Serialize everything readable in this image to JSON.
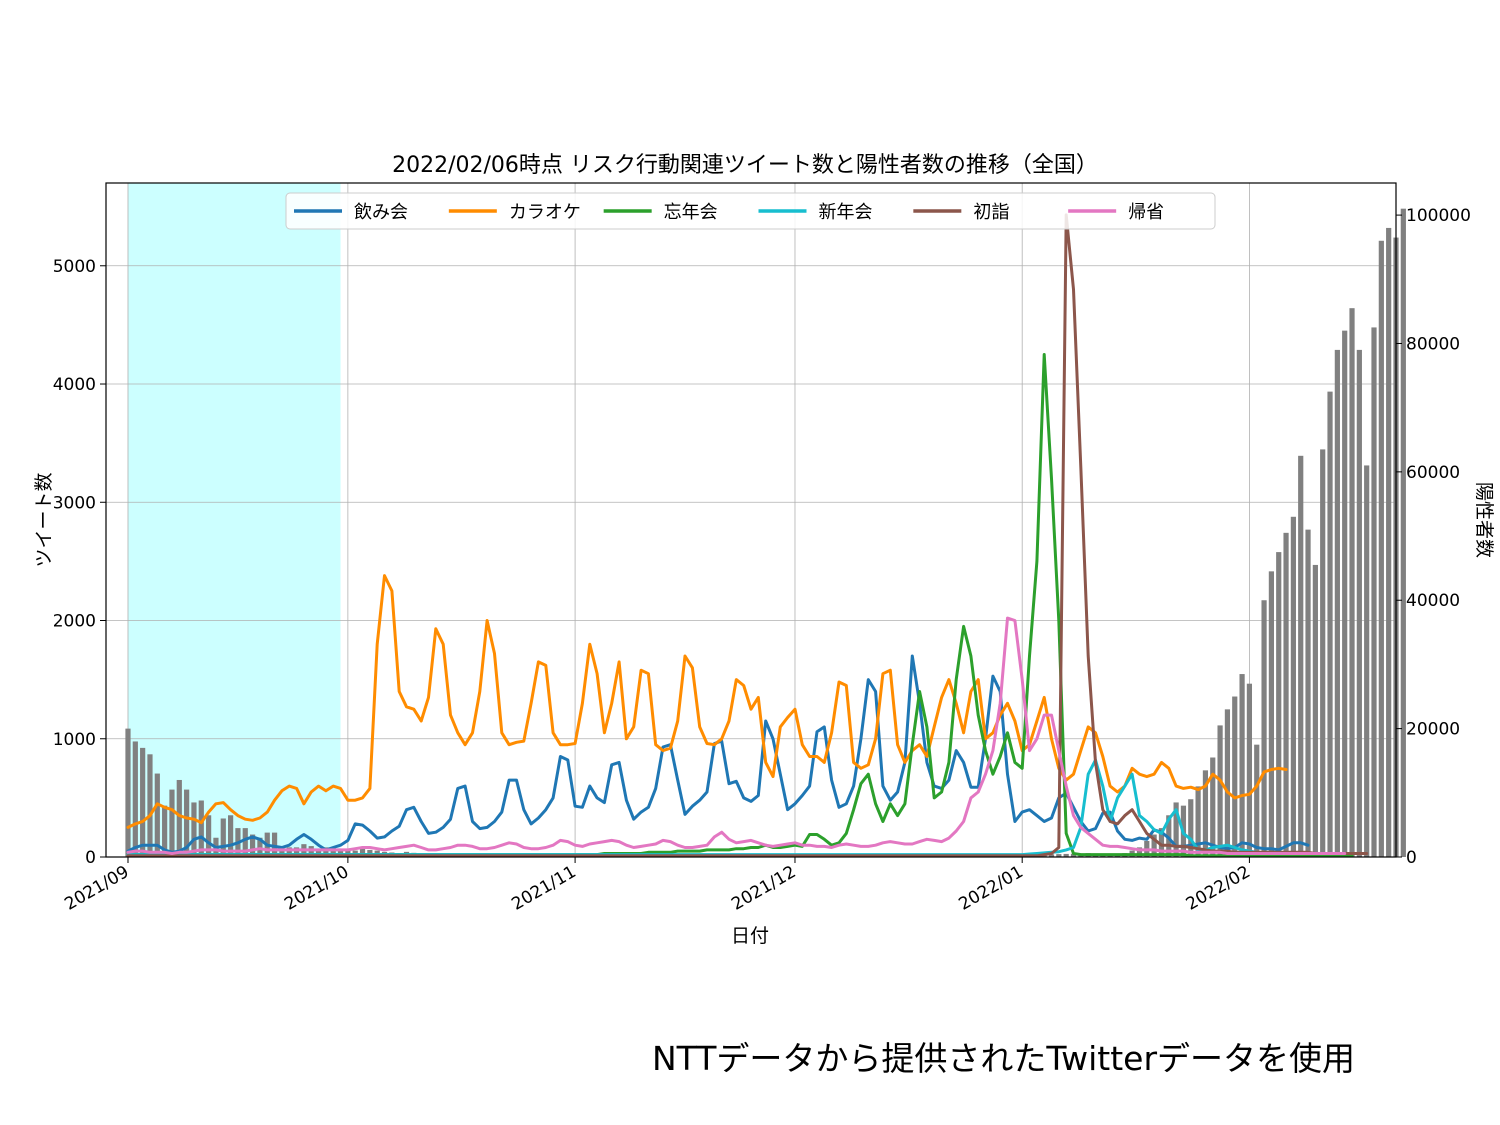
{
  "footer": {
    "credit": "NTTデータから提供されたTwitterデータを使用"
  },
  "chart_data": {
    "type": "line",
    "title": "2022/02/06時点 リスク行動関連ツイート数と陽性者数の推移（全国）",
    "xlabel": "日付",
    "ylabel": "ツイート数",
    "y2label": "陽性者数",
    "x_start": "2021-09-01",
    "x_end": "2022-02-06",
    "xlim": [
      "2021-08-29",
      "2022-02-21"
    ],
    "ylim": [
      0,
      5700
    ],
    "y2lim": [
      0,
      105000
    ],
    "x_ticks": [
      "2021/09",
      "2021/10",
      "2021/11",
      "2021/12",
      "2022/01",
      "2022/02"
    ],
    "x_tick_dates": [
      "2021-09-01",
      "2021-10-01",
      "2021-11-01",
      "2021-12-01",
      "2022-01-01",
      "2022-02-01"
    ],
    "y_ticks": [
      "0",
      "1000",
      "2000",
      "3000",
      "4000",
      "5000"
    ],
    "y2_ticks": [
      "0",
      "20000",
      "40000",
      "60000",
      "80000",
      "100000"
    ],
    "grid": true,
    "legend_position": "top-center",
    "shaded_period": {
      "from": "2021-09-01",
      "to": "2021-09-30",
      "color": "#ccffff"
    },
    "bars": {
      "name": "陽性者数",
      "color": "#808080",
      "axis": "right",
      "values": [
        20000,
        18000,
        17000,
        16000,
        13000,
        8000,
        10500,
        12000,
        10500,
        8500,
        8800,
        6500,
        3000,
        6000,
        6500,
        4500,
        4500,
        3500,
        3000,
        3800,
        3800,
        1500,
        1500,
        1500,
        2000,
        1700,
        1200,
        1500,
        1500,
        1300,
        1200,
        1000,
        1300,
        1100,
        1000,
        800,
        700,
        600,
        800,
        650,
        500,
        550,
        500,
        400,
        400,
        350,
        300,
        250,
        250,
        230,
        200,
        190,
        180,
        170,
        150,
        150,
        140,
        130,
        120,
        110,
        100,
        95,
        90,
        90,
        85,
        80,
        80,
        75,
        70,
        70,
        70,
        65,
        60,
        60,
        60,
        55,
        55,
        50,
        50,
        50,
        50,
        50,
        50,
        60,
        60,
        60,
        60,
        70,
        70,
        80,
        80,
        80,
        90,
        100,
        100,
        110,
        120,
        120,
        130,
        130,
        150,
        150,
        160,
        170,
        170,
        180,
        190,
        200,
        200,
        220,
        230,
        240,
        250,
        260,
        270,
        280,
        290,
        300,
        310,
        320,
        330,
        340,
        360,
        370,
        380,
        400,
        420,
        450,
        480,
        500,
        540,
        600,
        550,
        500,
        450,
        400,
        600,
        1000,
        1500,
        2500,
        3500,
        4500,
        6500,
        8500,
        8000,
        9000,
        11000,
        13500,
        15500,
        20500,
        23000,
        25000,
        28500,
        27000,
        17500,
        40000,
        44500,
        47500,
        50500,
        53000,
        62500,
        51000,
        45500,
        63500,
        72500,
        79000,
        82000,
        85500,
        79000,
        61000,
        82500,
        96000,
        98000,
        96500,
        101000
      ]
    },
    "series": [
      {
        "name": "飲み会",
        "color": "#1f77b4",
        "values": [
          50,
          80,
          100,
          100,
          100,
          60,
          40,
          50,
          80,
          150,
          170,
          120,
          80,
          90,
          100,
          120,
          150,
          170,
          150,
          100,
          90,
          80,
          100,
          150,
          190,
          150,
          100,
          60,
          80,
          100,
          140,
          280,
          270,
          220,
          160,
          170,
          220,
          260,
          400,
          420,
          300,
          200,
          210,
          250,
          320,
          580,
          600,
          300,
          240,
          250,
          300,
          380,
          650,
          650,
          400,
          280,
          330,
          400,
          500,
          850,
          820,
          430,
          420,
          600,
          500,
          460,
          780,
          800,
          480,
          320,
          380,
          420,
          580,
          930,
          950,
          650,
          360,
          430,
          480,
          550,
          960,
          980,
          620,
          640,
          500,
          470,
          520,
          1150,
          1000,
          700,
          400,
          450,
          520,
          600,
          1060,
          1100,
          650,
          420,
          450,
          600,
          1000,
          1500,
          1400,
          600,
          480,
          550,
          800,
          1700,
          1300,
          800,
          600,
          580,
          650,
          900,
          800,
          590,
          590,
          1000,
          1530,
          1400,
          700,
          300,
          380,
          400,
          350,
          300,
          330,
          500,
          540,
          420,
          300,
          220,
          240,
          370,
          380,
          220,
          150,
          140,
          160,
          150,
          230,
          210,
          160,
          90,
          90,
          100,
          110,
          120,
          100,
          80,
          70,
          80,
          120,
          110,
          80,
          70,
          70,
          60,
          90,
          120,
          120,
          100
        ]
      },
      {
        "name": "カラオケ",
        "color": "#ff8c00",
        "values": [
          250,
          280,
          300,
          350,
          450,
          420,
          400,
          350,
          330,
          320,
          290,
          380,
          450,
          460,
          400,
          350,
          320,
          310,
          330,
          380,
          480,
          560,
          600,
          580,
          450,
          550,
          600,
          560,
          600,
          580,
          480,
          480,
          500,
          580,
          1800,
          2380,
          2250,
          1400,
          1270,
          1250,
          1150,
          1350,
          1930,
          1800,
          1200,
          1050,
          950,
          1050,
          1400,
          2000,
          1720,
          1050,
          950,
          970,
          980,
          1300,
          1650,
          1620,
          1050,
          950,
          950,
          960,
          1300,
          1800,
          1550,
          1050,
          1300,
          1650,
          1000,
          1100,
          1580,
          1550,
          950,
          900,
          920,
          1150,
          1700,
          1600,
          1100,
          960,
          950,
          1000,
          1150,
          1500,
          1450,
          1250,
          1350,
          800,
          680,
          1100,
          1180,
          1250,
          950,
          850,
          850,
          800,
          1050,
          1480,
          1450,
          800,
          750,
          780,
          1000,
          1550,
          1580,
          950,
          800,
          900,
          950,
          850,
          1100,
          1350,
          1500,
          1300,
          1050,
          1400,
          1500,
          1000,
          1050,
          1200,
          1300,
          1150,
          900,
          950,
          1150,
          1350,
          1000,
          750,
          650,
          700,
          900,
          1100,
          1050,
          850,
          600,
          550,
          600,
          750,
          700,
          680,
          700,
          800,
          750,
          600,
          580,
          590,
          570,
          600,
          700,
          650,
          550,
          500,
          520,
          530,
          600,
          720,
          740,
          750,
          740
        ]
      },
      {
        "name": "忘年会",
        "color": "#2ca02c",
        "values": [
          20,
          20,
          20,
          20,
          20,
          20,
          20,
          20,
          20,
          20,
          20,
          20,
          20,
          20,
          20,
          20,
          20,
          20,
          20,
          20,
          20,
          20,
          20,
          20,
          20,
          20,
          20,
          20,
          20,
          20,
          20,
          20,
          20,
          20,
          20,
          20,
          20,
          20,
          20,
          20,
          20,
          20,
          20,
          20,
          20,
          20,
          20,
          20,
          20,
          20,
          20,
          20,
          20,
          20,
          20,
          20,
          20,
          20,
          20,
          20,
          20,
          20,
          20,
          20,
          20,
          30,
          30,
          30,
          30,
          30,
          30,
          40,
          40,
          40,
          40,
          50,
          50,
          50,
          50,
          60,
          60,
          60,
          60,
          70,
          70,
          80,
          80,
          100,
          80,
          80,
          90,
          100,
          90,
          190,
          190,
          150,
          100,
          120,
          200,
          400,
          620,
          700,
          450,
          300,
          450,
          350,
          450,
          950,
          1400,
          1100,
          500,
          550,
          800,
          1500,
          1950,
          1700,
          1200,
          900,
          700,
          850,
          1050,
          800,
          750,
          1700,
          2500,
          4250,
          3200,
          2000,
          200,
          30,
          20,
          20,
          20,
          20,
          20,
          20,
          20,
          20,
          20,
          20,
          20,
          20,
          20,
          20,
          20,
          10,
          10,
          10,
          10,
          10,
          10,
          10,
          10,
          10,
          10,
          10,
          10,
          10,
          10,
          10,
          10,
          10,
          10,
          10,
          10,
          10,
          10,
          10
        ]
      },
      {
        "name": "新年会",
        "color": "#17becf",
        "values": [
          20,
          20,
          20,
          20,
          20,
          20,
          20,
          20,
          20,
          20,
          20,
          20,
          20,
          20,
          20,
          20,
          20,
          20,
          20,
          20,
          20,
          20,
          20,
          20,
          20,
          20,
          20,
          20,
          20,
          20,
          20,
          20,
          20,
          20,
          20,
          20,
          20,
          20,
          20,
          20,
          20,
          20,
          20,
          20,
          20,
          20,
          20,
          20,
          20,
          20,
          20,
          20,
          20,
          20,
          20,
          20,
          20,
          20,
          20,
          20,
          20,
          20,
          20,
          20,
          20,
          20,
          20,
          20,
          20,
          20,
          20,
          20,
          20,
          20,
          20,
          20,
          20,
          20,
          20,
          20,
          20,
          20,
          20,
          20,
          20,
          20,
          20,
          20,
          20,
          20,
          20,
          20,
          20,
          20,
          20,
          20,
          20,
          20,
          20,
          20,
          20,
          20,
          20,
          20,
          20,
          20,
          20,
          20,
          20,
          20,
          20,
          20,
          20,
          20,
          20,
          20,
          20,
          20,
          20,
          20,
          20,
          20,
          20,
          25,
          30,
          35,
          40,
          45,
          60,
          80,
          250,
          700,
          820,
          600,
          300,
          500,
          600,
          700,
          350,
          300,
          230,
          200,
          320,
          400,
          200,
          150,
          60,
          60,
          80,
          90,
          100,
          80,
          60,
          50,
          40,
          30,
          30,
          30,
          30,
          30,
          30,
          30,
          30,
          30,
          30,
          30,
          30
        ]
      },
      {
        "name": "初詣",
        "color": "#8c564b",
        "values": [
          10,
          10,
          10,
          10,
          10,
          10,
          10,
          10,
          10,
          10,
          10,
          10,
          10,
          10,
          10,
          10,
          10,
          10,
          10,
          10,
          10,
          10,
          10,
          10,
          10,
          10,
          10,
          10,
          10,
          10,
          10,
          10,
          10,
          10,
          10,
          10,
          10,
          10,
          10,
          10,
          10,
          10,
          10,
          10,
          10,
          10,
          10,
          10,
          10,
          10,
          10,
          10,
          10,
          10,
          10,
          10,
          10,
          10,
          10,
          10,
          10,
          10,
          10,
          10,
          10,
          10,
          10,
          10,
          10,
          10,
          10,
          10,
          10,
          10,
          10,
          10,
          10,
          10,
          10,
          10,
          10,
          10,
          10,
          10,
          10,
          10,
          10,
          10,
          10,
          10,
          10,
          10,
          10,
          10,
          10,
          10,
          10,
          10,
          10,
          10,
          10,
          10,
          10,
          10,
          10,
          10,
          10,
          10,
          10,
          10,
          10,
          10,
          10,
          10,
          10,
          10,
          10,
          10,
          10,
          10,
          10,
          10,
          10,
          10,
          10,
          20,
          30,
          80,
          5430,
          4800,
          3300,
          1700,
          800,
          400,
          300,
          280,
          350,
          400,
          300,
          200,
          150,
          100,
          100,
          90,
          90,
          80,
          70,
          60,
          50,
          50,
          50,
          40,
          40,
          40,
          40,
          40,
          40,
          40,
          40,
          40,
          40,
          40,
          30,
          30,
          30,
          30,
          30,
          30,
          30,
          30
        ]
      },
      {
        "name": "帰省",
        "color": "#e377c2",
        "values": [
          40,
          50,
          50,
          40,
          40,
          40,
          30,
          40,
          40,
          50,
          60,
          60,
          60,
          50,
          50,
          50,
          50,
          60,
          70,
          60,
          60,
          60,
          60,
          60,
          60,
          60,
          60,
          60,
          60,
          60,
          60,
          70,
          80,
          80,
          70,
          60,
          70,
          80,
          90,
          100,
          80,
          60,
          60,
          70,
          80,
          100,
          100,
          90,
          70,
          70,
          80,
          100,
          120,
          110,
          80,
          70,
          70,
          80,
          100,
          140,
          130,
          100,
          90,
          110,
          120,
          130,
          140,
          130,
          100,
          80,
          90,
          100,
          110,
          140,
          130,
          100,
          80,
          80,
          90,
          100,
          170,
          210,
          150,
          120,
          130,
          140,
          120,
          100,
          90,
          100,
          110,
          120,
          100,
          100,
          90,
          90,
          80,
          100,
          110,
          100,
          90,
          90,
          100,
          120,
          130,
          120,
          110,
          110,
          130,
          150,
          140,
          130,
          160,
          220,
          300,
          500,
          550,
          700,
          900,
          1300,
          2020,
          2000,
          1500,
          900,
          1000,
          1200,
          1200,
          900,
          600,
          350,
          250,
          200,
          150,
          100,
          90,
          90,
          80,
          70,
          60,
          60,
          60,
          50,
          50,
          50,
          50,
          40,
          40,
          40,
          40,
          40,
          30,
          30,
          30,
          30,
          30,
          30,
          30,
          30,
          30,
          30,
          30,
          30,
          30,
          30,
          30,
          30,
          30
        ]
      }
    ]
  }
}
